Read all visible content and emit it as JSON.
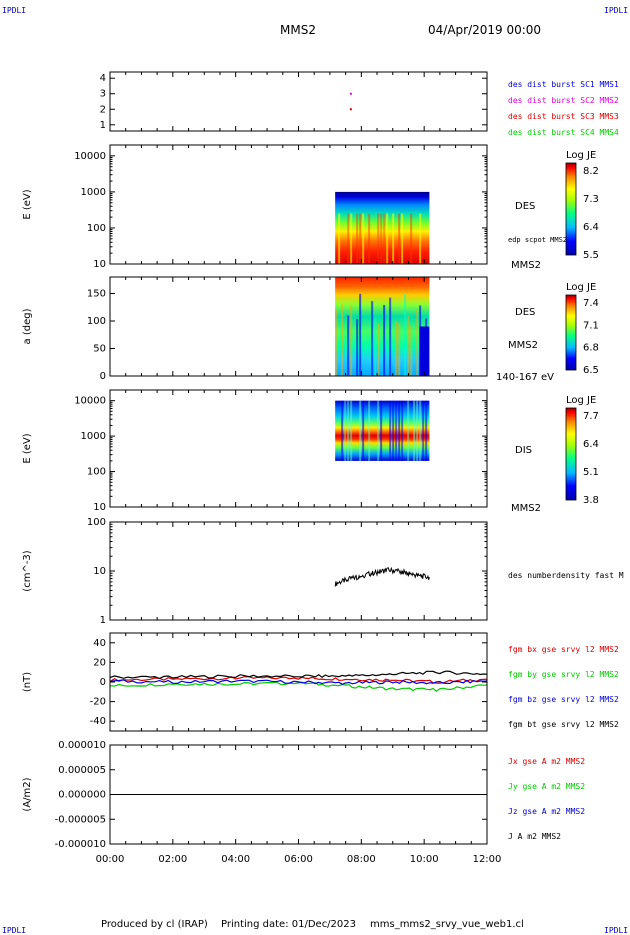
{
  "header": {
    "corner_left": "IPDLI",
    "corner_right": "IPDLI",
    "spacecraft": "MMS2",
    "datetime": "04/Apr/2019 00:00"
  },
  "footer": {
    "produced_by": "Produced by cl (IRAP)",
    "printing_date": "Printing date: 01/Dec/2023",
    "filename": "mms_mms2_srvy_vue_web1.cl",
    "corner_left": "IPDLI",
    "corner_right": "IPDLI"
  },
  "colors": {
    "red": "#dd0000",
    "green": "#00cc00",
    "blue": "#0000dd",
    "magenta": "#dd00dd",
    "black": "#000000"
  },
  "chart_data": [
    {
      "id": "burst",
      "type": "scatter",
      "xlim": [
        "00:00",
        "12:00"
      ],
      "ylim": [
        0.6,
        4.4
      ],
      "yticks": [
        "1",
        "2",
        "3",
        "4"
      ],
      "ytick_values": [
        1,
        2,
        3,
        4
      ],
      "points": [
        {
          "x": "07:40",
          "y": 3,
          "series": "des dist burst SC2 MMS2"
        },
        {
          "x": "07:40",
          "y": 2,
          "series": "des dist burst SC3 MMS3"
        }
      ],
      "legend": [
        {
          "text": "des dist burst SC1 MMS1",
          "color": "#0000dd"
        },
        {
          "text": "des dist burst SC2 MMS2",
          "color": "#dd00dd"
        },
        {
          "text": "des dist burst SC3 MMS3",
          "color": "#dd0000"
        },
        {
          "text": "des dist burst SC4 MMS4",
          "color": "#00cc00"
        }
      ]
    },
    {
      "id": "des-energy",
      "type": "heatmap",
      "ylabel": "E (eV)",
      "yscale": "log",
      "ylim": [
        10,
        20000
      ],
      "yticks": [
        "10",
        "100",
        "1000",
        "10000"
      ],
      "ytick_values": [
        10,
        100,
        1000,
        10000
      ],
      "data_x": [
        "07:10",
        "10:10"
      ],
      "data_y": [
        10,
        1000
      ],
      "instrument": "DES",
      "annotation_top": "",
      "annotation_mid": "edp scpot MMS2",
      "annotation_bottom": "MMS2",
      "colorbar": {
        "title": "Log JE",
        "ticks": [
          "8.2",
          "7.3",
          "6.4",
          "5.5"
        ],
        "range": [
          5.5,
          8.2
        ]
      }
    },
    {
      "id": "des-pitch",
      "type": "heatmap",
      "ylabel": "a (deg)",
      "yscale": "linear",
      "ylim": [
        0,
        180
      ],
      "yticks": [
        "0",
        "50",
        "100",
        "150"
      ],
      "ytick_values": [
        0,
        50,
        100,
        150
      ],
      "data_x": [
        "07:10",
        "10:10"
      ],
      "data_y": [
        0,
        180
      ],
      "instrument": "DES",
      "annotation_mid": "MMS2",
      "annotation_bottom": "140-167 eV",
      "colorbar": {
        "title": "Log JE",
        "ticks": [
          "7.4",
          "7.1",
          "6.8",
          "6.5"
        ],
        "range": [
          6.5,
          7.4
        ]
      }
    },
    {
      "id": "dis-energy",
      "type": "heatmap",
      "ylabel": "E (eV)",
      "yscale": "log",
      "ylim": [
        10,
        20000
      ],
      "yticks": [
        "10",
        "100",
        "1000",
        "10000"
      ],
      "ytick_values": [
        10,
        100,
        1000,
        10000
      ],
      "data_x": [
        "07:10",
        "10:10"
      ],
      "data_y": [
        200,
        10000
      ],
      "instrument": "DIS",
      "annotation_bottom": "MMS2",
      "colorbar": {
        "title": "Log JE",
        "ticks": [
          "7.7",
          "6.4",
          "5.1",
          "3.8"
        ],
        "range": [
          3.8,
          7.7
        ]
      }
    },
    {
      "id": "density",
      "type": "line",
      "ylabel": "(cm^-3)",
      "yscale": "log",
      "ylim": [
        1,
        100
      ],
      "yticks": [
        "1",
        "10",
        "100"
      ],
      "ytick_values": [
        1,
        10,
        100
      ],
      "series": [
        {
          "name": "des numberdensity fast M",
          "color": "#000000",
          "x": [
            "07:10",
            "07:30",
            "07:50",
            "08:10",
            "08:30",
            "08:50",
            "09:10",
            "09:30",
            "09:50",
            "10:10"
          ],
          "y": [
            5.5,
            6.5,
            7.5,
            8.5,
            9.5,
            10.5,
            10.0,
            9.0,
            8.0,
            7.5
          ]
        }
      ]
    },
    {
      "id": "field",
      "type": "line",
      "ylabel": "(nT)",
      "yscale": "linear",
      "ylim": [
        -50,
        50
      ],
      "yticks": [
        "-40",
        "-20",
        "0",
        "20",
        "40"
      ],
      "ytick_values": [
        -40,
        -20,
        0,
        20,
        40
      ],
      "series": [
        {
          "name": "fgm bx gse srvy l2 MMS2",
          "color": "#dd0000",
          "x": [
            "00:00",
            "02:00",
            "04:00",
            "06:00",
            "07:30",
            "09:00",
            "10:30",
            "12:00"
          ],
          "y": [
            2,
            3,
            4,
            4,
            3,
            2,
            0,
            3
          ]
        },
        {
          "name": "fgm by gse srvy l2 MMS2",
          "color": "#00cc00",
          "x": [
            "00:00",
            "02:00",
            "04:00",
            "06:00",
            "07:30",
            "09:00",
            "10:30",
            "12:00"
          ],
          "y": [
            -4,
            -2,
            -2,
            -1,
            -4,
            -7,
            -8,
            -3
          ]
        },
        {
          "name": "fgm bz gse srvy l2 MMS2",
          "color": "#0000dd",
          "x": [
            "00:00",
            "02:00",
            "04:00",
            "06:00",
            "07:30",
            "09:00",
            "10:30",
            "12:00"
          ],
          "y": [
            1,
            0,
            1,
            0,
            -1,
            0,
            -1,
            1
          ]
        },
        {
          "name": "fgm bt gse srvy l2 MMS2",
          "color": "#000000",
          "x": [
            "00:00",
            "02:00",
            "04:00",
            "06:00",
            "07:30",
            "09:00",
            "10:30",
            "12:00"
          ],
          "y": [
            5,
            5,
            6,
            6,
            6,
            8,
            10,
            8
          ]
        }
      ]
    },
    {
      "id": "current",
      "type": "line",
      "ylabel": "(A/m2)",
      "yscale": "linear",
      "ylim": [
        -1e-05,
        1e-05
      ],
      "yticks": [
        "-0.000010",
        "-0.000005",
        "0.000000",
        "0.000005",
        "0.000010"
      ],
      "ytick_values": [
        -1e-05,
        -5e-06,
        0,
        5e-06,
        1e-05
      ],
      "xticks": [
        "00:00",
        "02:00",
        "04:00",
        "06:00",
        "08:00",
        "10:00",
        "12:00"
      ],
      "series": [
        {
          "name": "Jx gse A m2 MMS2",
          "color": "#dd0000"
        },
        {
          "name": "Jy gse A m2 MMS2",
          "color": "#00cc00"
        },
        {
          "name": "Jz gse A m2 MMS2",
          "color": "#0000dd"
        },
        {
          "name": "J A m2 MMS2",
          "color": "#000000",
          "x": [
            "00:00",
            "12:00"
          ],
          "y": [
            0,
            0
          ]
        }
      ]
    }
  ]
}
